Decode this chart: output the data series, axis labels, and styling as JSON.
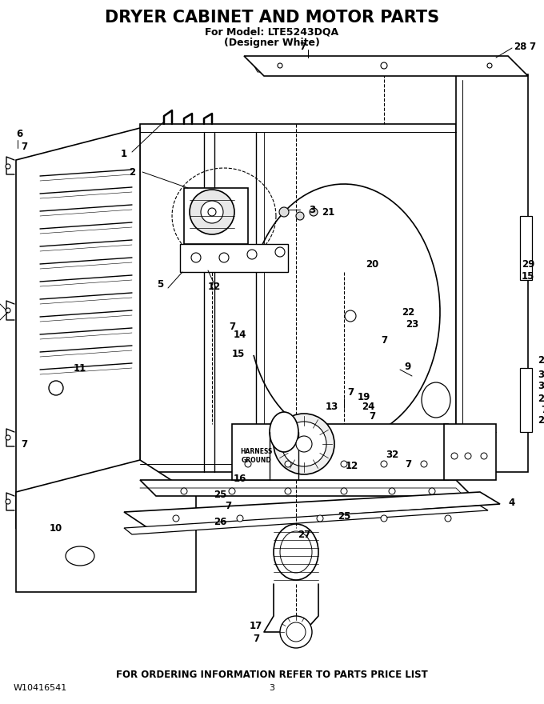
{
  "title": "DRYER CABINET AND MOTOR PARTS",
  "subtitle1": "For Model: LTE5243DQA",
  "subtitle2": "(Designer White)",
  "footer_center": "FOR ORDERING INFORMATION REFER TO PARTS PRICE LIST",
  "footer_left": "W10416541",
  "footer_page": "3",
  "bg_color": "#ffffff",
  "line_color": "#000000",
  "title_fontsize": 15,
  "subtitle_fontsize": 9,
  "footer_fontsize": 8.5
}
